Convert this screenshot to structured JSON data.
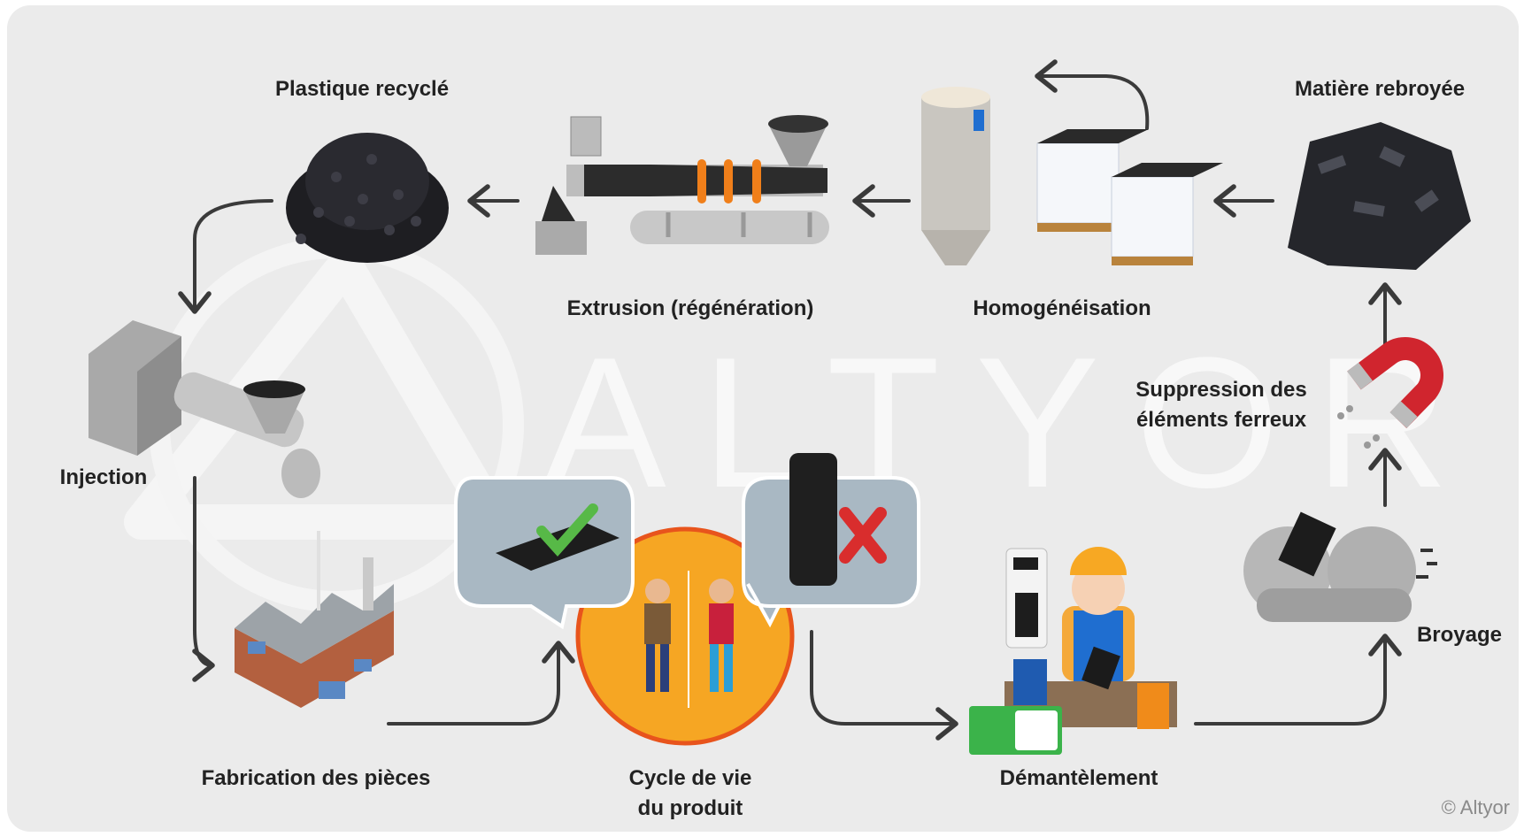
{
  "watermark": "ALTYOR",
  "copyright": "© Altyor",
  "steps": [
    {
      "lines": [
        "Plastique recyclé"
      ]
    },
    {
      "lines": [
        "Extrusion (régénération)"
      ]
    },
    {
      "lines": [
        "Homogénéisation"
      ]
    },
    {
      "lines": [
        "Matière rebroyée"
      ]
    },
    {
      "lines": [
        "Suppression des",
        "éléments ferreux"
      ]
    },
    {
      "lines": [
        "Broyage"
      ]
    },
    {
      "lines": [
        "Démantèlement"
      ]
    },
    {
      "lines": [
        "Cycle de vie",
        "du produit"
      ]
    },
    {
      "lines": [
        "Fabrication des pièces"
      ]
    },
    {
      "lines": [
        "Injection"
      ]
    }
  ]
}
